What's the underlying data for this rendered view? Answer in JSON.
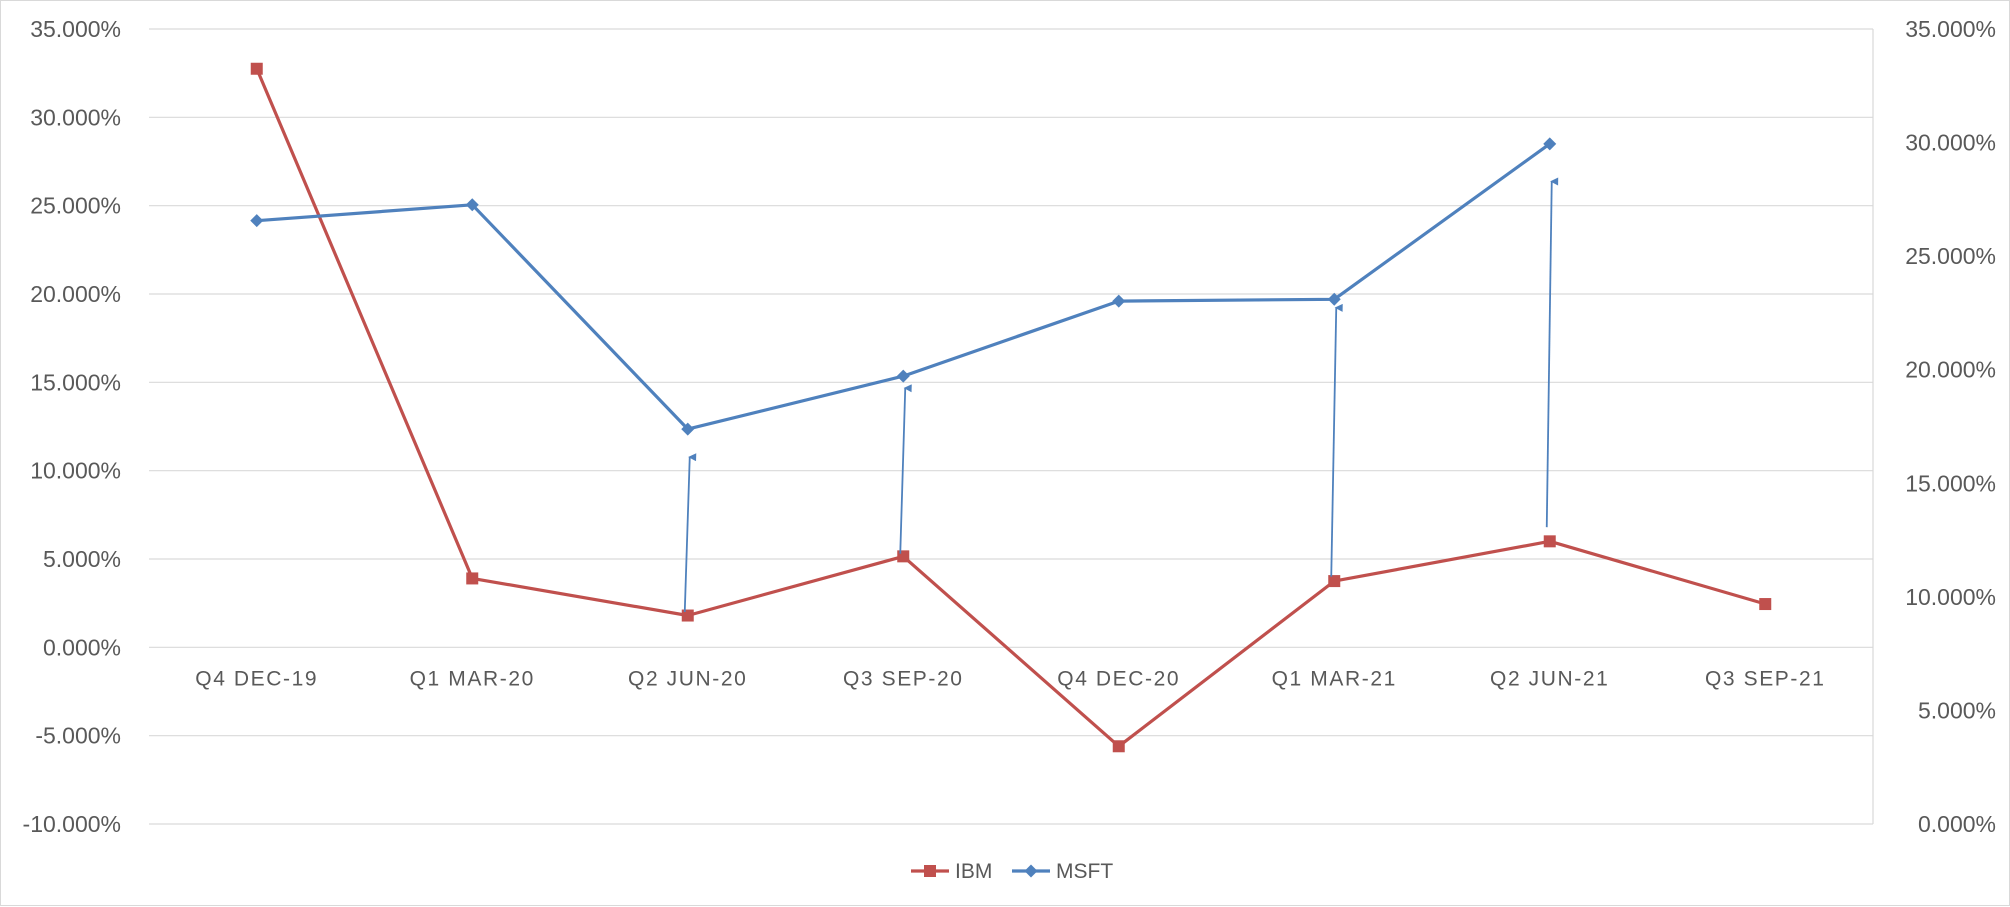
{
  "chart_data": {
    "type": "line",
    "title": "",
    "xlabel": "",
    "ylabel": "",
    "categories": [
      "Q4 DEC-19",
      "Q1 MAR-20",
      "Q2 JUN-20",
      "Q3 SEP-20",
      "Q4 DEC-20",
      "Q1 MAR-21",
      "Q2 JUN-21",
      "Q3 SEP-21"
    ],
    "y_left": {
      "min": -0.1,
      "max": 0.35,
      "step": 0.05,
      "tick_labels": [
        "35.000%",
        "30.000%",
        "25.000%",
        "20.000%",
        "15.000%",
        "10.000%",
        "5.000%",
        "0.000%",
        "-5.000%",
        "-10.000%"
      ]
    },
    "y_right": {
      "min": 0.0,
      "max": 0.35,
      "step": 0.05,
      "tick_labels": [
        "35.000%",
        "30.000%",
        "25.000%",
        "20.000%",
        "15.000%",
        "10.000%",
        "5.000%",
        "0.000%"
      ]
    },
    "grid": true,
    "legend": "bottom",
    "series": [
      {
        "name": "IBM",
        "axis": "left",
        "color": "#C0504D",
        "marker": "square",
        "values": [
          0.3275,
          0.039,
          0.018,
          0.0515,
          -0.056,
          0.0375,
          0.06,
          0.0245
        ]
      },
      {
        "name": "MSFT",
        "axis": "left",
        "color": "#4F81BD",
        "marker": "diamond",
        "values": [
          0.2415,
          0.2505,
          0.1235,
          0.1535,
          0.196,
          0.197,
          0.285,
          null
        ]
      }
    ],
    "annotations": [
      {
        "type": "arrow",
        "from_category": "Q2 JUN-20",
        "from_value": 0.02,
        "to_value": 0.11,
        "color": "#4F81BD"
      },
      {
        "type": "arrow",
        "from_category": "Q3 SEP-20",
        "from_value": 0.053,
        "to_value": 0.149,
        "color": "#4F81BD"
      },
      {
        "type": "arrow",
        "from_category": "Q1 MAR-21",
        "from_value": 0.04,
        "to_value": 0.1945,
        "color": "#4F81BD"
      },
      {
        "type": "arrow",
        "from_category": "Q2 JUN-21",
        "from_value": 0.068,
        "to_value": 0.266,
        "color": "#4F81BD"
      }
    ]
  }
}
